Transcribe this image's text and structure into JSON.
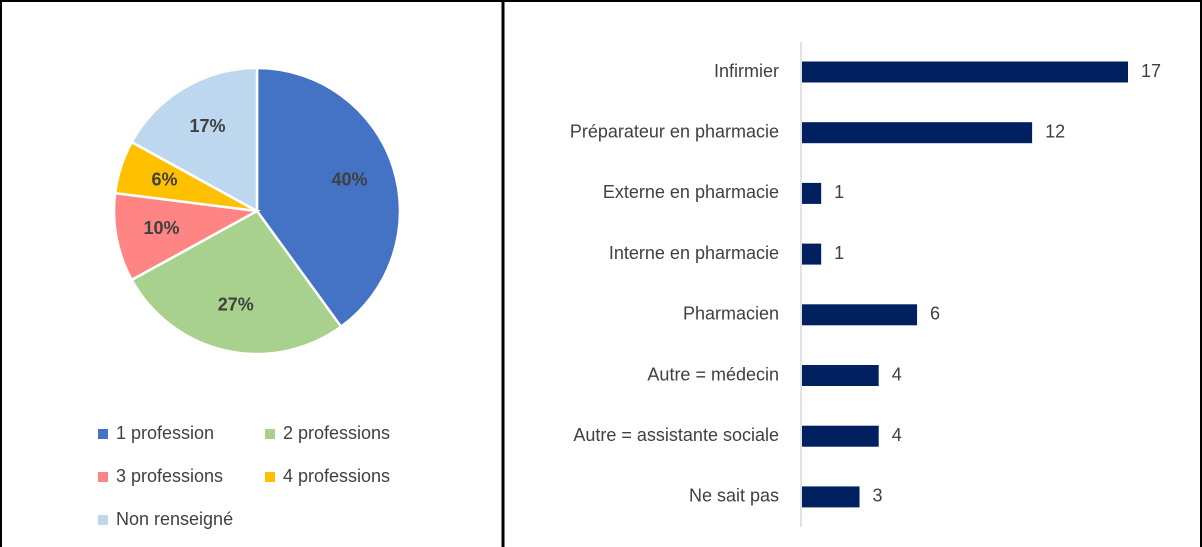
{
  "chart_data": [
    {
      "type": "pie",
      "categories": [
        "1 profession",
        "2 professions",
        "3 professions",
        "4 professions",
        "Non renseigné"
      ],
      "values": [
        40,
        27,
        10,
        6,
        17
      ],
      "value_labels": [
        "40%",
        "27%",
        "10%",
        "6%",
        "17%"
      ],
      "colors": [
        "#4472c4",
        "#a9d18e",
        "#ff8585",
        "#ffc000",
        "#bdd7ee"
      ]
    },
    {
      "type": "bar",
      "orientation": "horizontal",
      "categories": [
        "Infirmier",
        "Préparateur en pharmacie",
        "Externe en pharmacie",
        "Interne en pharmacie",
        "Pharmacien",
        "Autre = médecin",
        "Autre = assistante sociale",
        "Ne sait pas"
      ],
      "values": [
        17,
        12,
        1,
        1,
        6,
        4,
        4,
        3
      ],
      "color": "#002060"
    }
  ]
}
